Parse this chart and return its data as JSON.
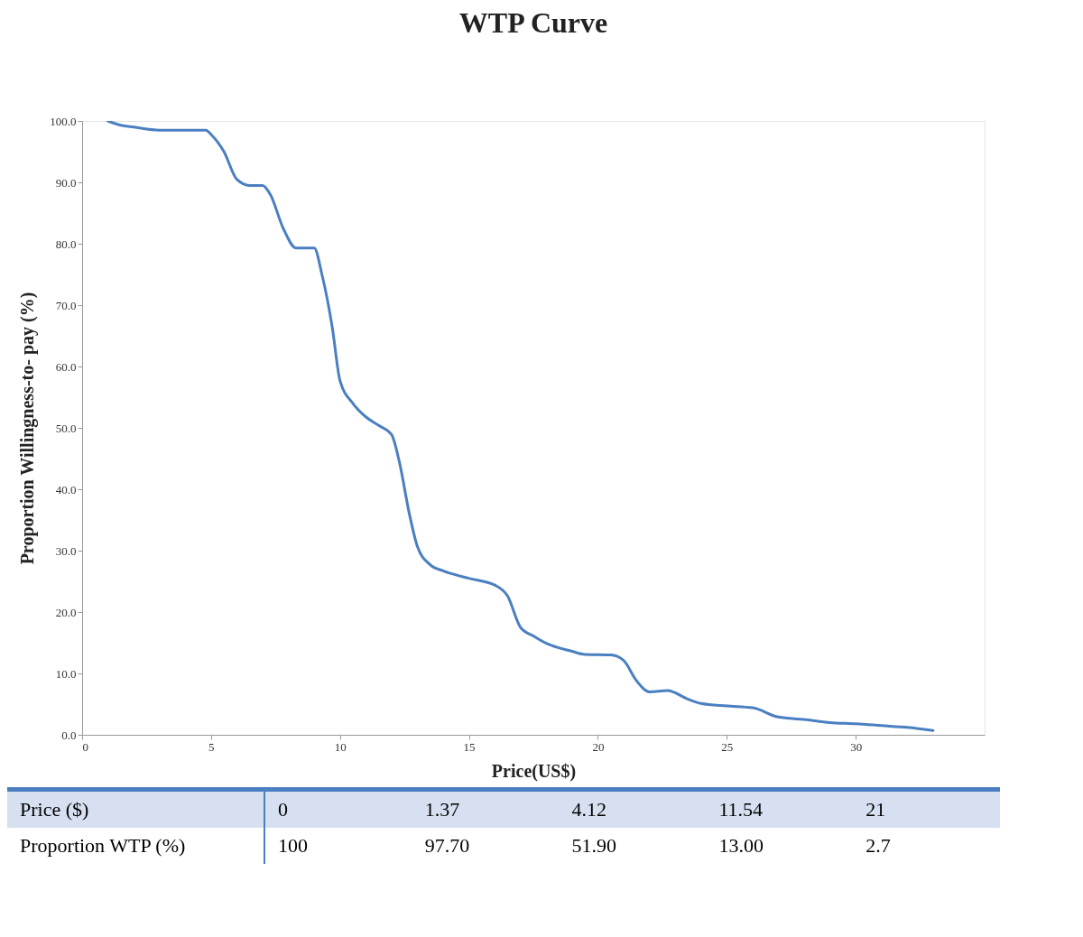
{
  "chart_data": {
    "type": "line",
    "title": "WTP Curve",
    "xlabel": "Price(US$)",
    "ylabel": "Proportion  Willingness-to- pay (%)",
    "x": [
      1,
      1.5,
      2,
      3,
      4,
      4.8,
      5,
      5.5,
      6,
      6.5,
      7,
      7.3,
      7.8,
      8.3,
      9,
      9.3,
      9.7,
      10,
      10.5,
      11,
      11.5,
      12,
      12.3,
      12.7,
      13,
      13.5,
      14,
      15,
      16,
      16.5,
      17,
      17.5,
      18,
      19,
      19.5,
      20.5,
      21,
      21.5,
      22,
      22.7,
      23.5,
      24,
      25,
      26,
      27,
      28,
      29,
      30,
      31,
      32,
      33
    ],
    "series": [
      {
        "color": "#4a7fc1",
        "values": [
          100,
          99.3,
          99,
          98.5,
          98.5,
          98.5,
          97.8,
          95,
          90.5,
          89.5,
          89.5,
          88,
          82.5,
          79.3,
          79.3,
          75,
          66.4,
          57.7,
          54,
          51.8,
          50.4,
          48.9,
          44.5,
          35.8,
          30.7,
          27.7,
          26.7,
          25.5,
          24.4,
          22.6,
          17.5,
          16.1,
          14.9,
          13.6,
          13.1,
          13,
          12.1,
          8.8,
          7,
          7.2,
          5.8,
          5.1,
          4.7,
          4.4,
          2.9,
          2.5,
          2,
          1.8,
          1.5,
          1.2,
          0.7
        ]
      }
    ],
    "xlim": [
      0,
      35
    ],
    "xticks": [
      0,
      5,
      10,
      15,
      20,
      25,
      30
    ],
    "ylim": [
      0,
      100
    ],
    "yticks": [
      {
        "value": 0,
        "label": "0.0"
      },
      {
        "value": 10,
        "label": "10.0"
      },
      {
        "value": 20,
        "label": "20.0"
      },
      {
        "value": 30,
        "label": "30.0"
      },
      {
        "value": 40,
        "label": "40.0"
      },
      {
        "value": 50,
        "label": "50.0"
      },
      {
        "value": 60,
        "label": "60.0"
      },
      {
        "value": 70,
        "label": "70.0"
      },
      {
        "value": 80,
        "label": "80.0"
      },
      {
        "value": 90,
        "label": "90.0"
      },
      {
        "value": 100,
        "label": "100.0"
      }
    ],
    "grid": false,
    "marker": "none",
    "line_style": "solid",
    "annotations": [
      "Price ($)",
      "0",
      "1.37",
      "4.12",
      "11.54",
      "21",
      "Proportion WTP (%)",
      "100",
      "97.70",
      "51.90",
      "13.00",
      "2.7"
    ]
  }
}
